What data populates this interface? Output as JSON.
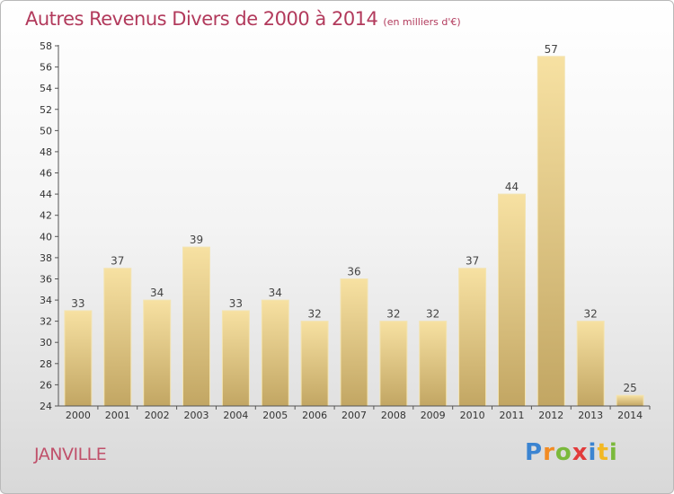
{
  "header": {
    "title": "Autres Revenus Divers de 2000 à 2014",
    "subtitle": "(en milliers d'€)"
  },
  "footer": {
    "town": "JANVILLE",
    "logo_text": "Proxiti"
  },
  "colors": {
    "title": "#b23a5c",
    "bar_light": "#f5dc98",
    "bar_dark": "#c2a865",
    "axis": "#555555"
  },
  "chart_data": {
    "type": "bar",
    "title": "Autres Revenus Divers de 2000 à 2014",
    "subtitle": "(en milliers d'€)",
    "xlabel": "",
    "ylabel": "",
    "categories": [
      "2000",
      "2001",
      "2002",
      "2003",
      "2004",
      "2005",
      "2006",
      "2007",
      "2008",
      "2009",
      "2010",
      "2011",
      "2012",
      "2013",
      "2014"
    ],
    "values": [
      33,
      37,
      34,
      39,
      33,
      34,
      32,
      36,
      32,
      32,
      37,
      44,
      57,
      32,
      25
    ],
    "ylim": [
      24,
      58
    ],
    "yticks": [
      24,
      26,
      28,
      30,
      32,
      34,
      36,
      38,
      40,
      42,
      44,
      46,
      48,
      50,
      52,
      54,
      56,
      58
    ],
    "grid": false,
    "data_labels": true
  }
}
